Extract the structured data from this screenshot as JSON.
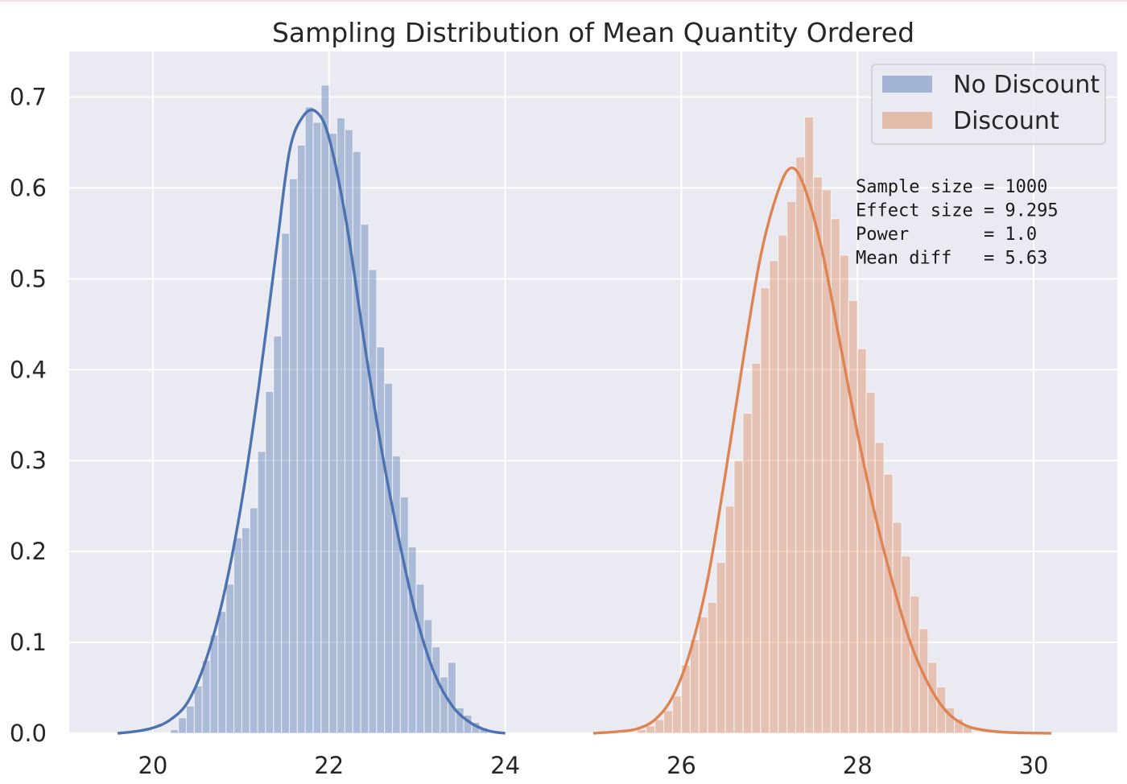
{
  "chart_data": {
    "type": "histogram",
    "title": "Sampling Distribution of Mean Quantity Ordered",
    "xlabel": "",
    "ylabel": "",
    "xlim": [
      19.05,
      30.95
    ],
    "ylim": [
      0,
      0.75
    ],
    "xticks": [
      20,
      22,
      24,
      26,
      28,
      30
    ],
    "yticks": [
      0.0,
      0.1,
      0.2,
      0.3,
      0.4,
      0.5,
      0.6,
      0.7
    ],
    "grid": true,
    "legend_position": "top-right",
    "series": [
      {
        "name": "No Discount",
        "color": "#4c72b0",
        "bar_alpha": 0.4,
        "bins": [
          [
            20.2,
            0.004
          ],
          [
            20.29,
            0.017
          ],
          [
            20.38,
            0.03
          ],
          [
            20.47,
            0.052
          ],
          [
            20.56,
            0.08
          ],
          [
            20.65,
            0.108
          ],
          [
            20.74,
            0.134
          ],
          [
            20.83,
            0.164
          ],
          [
            20.92,
            0.215
          ],
          [
            21.01,
            0.226
          ],
          [
            21.1,
            0.248
          ],
          [
            21.19,
            0.31
          ],
          [
            21.28,
            0.376
          ],
          [
            21.37,
            0.437
          ],
          [
            21.46,
            0.55
          ],
          [
            21.55,
            0.61
          ],
          [
            21.64,
            0.647
          ],
          [
            21.73,
            0.689
          ],
          [
            21.82,
            0.672
          ],
          [
            21.91,
            0.713
          ],
          [
            22.0,
            0.66
          ],
          [
            22.09,
            0.677
          ],
          [
            22.18,
            0.664
          ],
          [
            22.27,
            0.64
          ],
          [
            22.36,
            0.56
          ],
          [
            22.45,
            0.51
          ],
          [
            22.54,
            0.425
          ],
          [
            22.63,
            0.385
          ],
          [
            22.72,
            0.305
          ],
          [
            22.81,
            0.26
          ],
          [
            22.9,
            0.205
          ],
          [
            22.99,
            0.164
          ],
          [
            23.08,
            0.125
          ],
          [
            23.17,
            0.095
          ],
          [
            23.26,
            0.062
          ],
          [
            23.35,
            0.078
          ],
          [
            23.44,
            0.028
          ],
          [
            23.53,
            0.02
          ],
          [
            23.62,
            0.012
          ],
          [
            23.71,
            0.006
          ]
        ],
        "kde": [
          [
            19.6,
            0.0
          ],
          [
            19.8,
            0.002
          ],
          [
            20.0,
            0.006
          ],
          [
            20.2,
            0.015
          ],
          [
            20.4,
            0.035
          ],
          [
            20.6,
            0.08
          ],
          [
            20.8,
            0.15
          ],
          [
            21.0,
            0.25
          ],
          [
            21.2,
            0.38
          ],
          [
            21.4,
            0.53
          ],
          [
            21.55,
            0.64
          ],
          [
            21.7,
            0.678
          ],
          [
            21.85,
            0.684
          ],
          [
            22.0,
            0.655
          ],
          [
            22.2,
            0.56
          ],
          [
            22.4,
            0.43
          ],
          [
            22.6,
            0.31
          ],
          [
            22.8,
            0.21
          ],
          [
            23.0,
            0.125
          ],
          [
            23.2,
            0.065
          ],
          [
            23.4,
            0.03
          ],
          [
            23.6,
            0.012
          ],
          [
            23.8,
            0.003
          ],
          [
            24.0,
            0.0
          ]
        ]
      },
      {
        "name": "Discount",
        "color": "#dd8452",
        "bar_alpha": 0.4,
        "bins": [
          [
            25.5,
            0.004
          ],
          [
            25.6,
            0.008
          ],
          [
            25.7,
            0.015
          ],
          [
            25.8,
            0.025
          ],
          [
            25.9,
            0.041
          ],
          [
            26.0,
            0.075
          ],
          [
            26.1,
            0.103
          ],
          [
            26.2,
            0.128
          ],
          [
            26.3,
            0.144
          ],
          [
            26.4,
            0.188
          ],
          [
            26.5,
            0.25
          ],
          [
            26.6,
            0.3
          ],
          [
            26.7,
            0.352
          ],
          [
            26.8,
            0.407
          ],
          [
            26.9,
            0.49
          ],
          [
            27.0,
            0.52
          ],
          [
            27.1,
            0.548
          ],
          [
            27.2,
            0.585
          ],
          [
            27.3,
            0.634
          ],
          [
            27.4,
            0.678
          ],
          [
            27.5,
            0.612
          ],
          [
            27.6,
            0.598
          ],
          [
            27.7,
            0.566
          ],
          [
            27.8,
            0.526
          ],
          [
            27.9,
            0.476
          ],
          [
            28.0,
            0.423
          ],
          [
            28.1,
            0.375
          ],
          [
            28.2,
            0.32
          ],
          [
            28.3,
            0.285
          ],
          [
            28.4,
            0.232
          ],
          [
            28.5,
            0.195
          ],
          [
            28.6,
            0.151
          ],
          [
            28.7,
            0.115
          ],
          [
            28.8,
            0.078
          ],
          [
            28.9,
            0.051
          ],
          [
            29.0,
            0.028
          ],
          [
            29.1,
            0.016
          ],
          [
            29.2,
            0.008
          ]
        ],
        "kde": [
          [
            25.0,
            0.0
          ],
          [
            25.3,
            0.002
          ],
          [
            25.5,
            0.005
          ],
          [
            25.7,
            0.015
          ],
          [
            25.9,
            0.04
          ],
          [
            26.1,
            0.09
          ],
          [
            26.3,
            0.17
          ],
          [
            26.5,
            0.285
          ],
          [
            26.7,
            0.41
          ],
          [
            26.9,
            0.525
          ],
          [
            27.1,
            0.597
          ],
          [
            27.25,
            0.622
          ],
          [
            27.4,
            0.6
          ],
          [
            27.6,
            0.53
          ],
          [
            27.8,
            0.43
          ],
          [
            28.0,
            0.33
          ],
          [
            28.2,
            0.24
          ],
          [
            28.4,
            0.165
          ],
          [
            28.6,
            0.1
          ],
          [
            28.8,
            0.055
          ],
          [
            29.0,
            0.025
          ],
          [
            29.2,
            0.01
          ],
          [
            29.4,
            0.004
          ],
          [
            29.7,
            0.001
          ],
          [
            30.2,
            0.0
          ]
        ]
      }
    ],
    "annotation": {
      "lines": [
        "Sample size = 1000",
        "Effect size = 9.295",
        "Power       = 1.0",
        "Mean diff   = 5.63"
      ]
    },
    "style": {
      "plot_bg": "#eaeaf2",
      "grid_color": "#ffffff",
      "text_color": "#262626"
    }
  }
}
